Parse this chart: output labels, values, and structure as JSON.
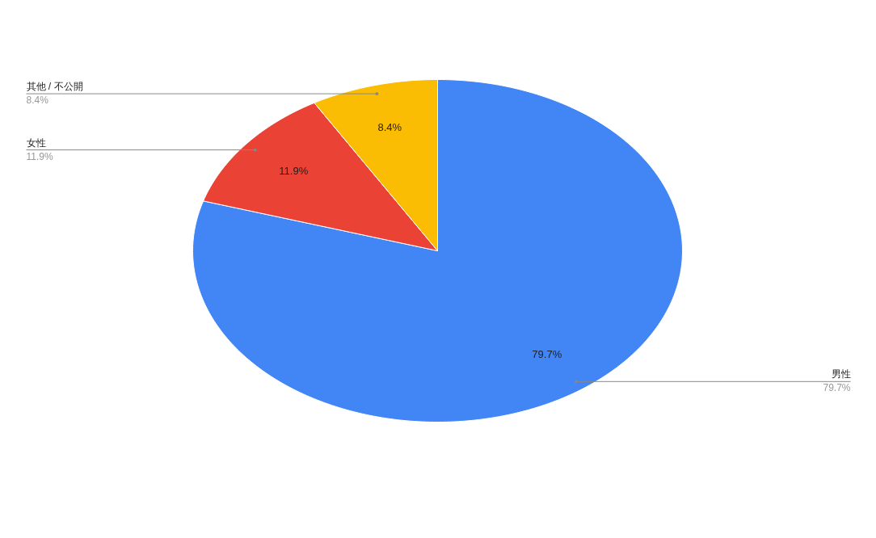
{
  "chart_data": {
    "type": "pie",
    "categories": [
      "男性",
      "女性",
      "其他 / 不公開"
    ],
    "values": [
      79.7,
      11.9,
      8.4
    ],
    "value_labels": [
      "79.7%",
      "11.9%",
      "8.4%"
    ],
    "colors": [
      "#4285f4",
      "#ea4335",
      "#fbbc04"
    ]
  }
}
